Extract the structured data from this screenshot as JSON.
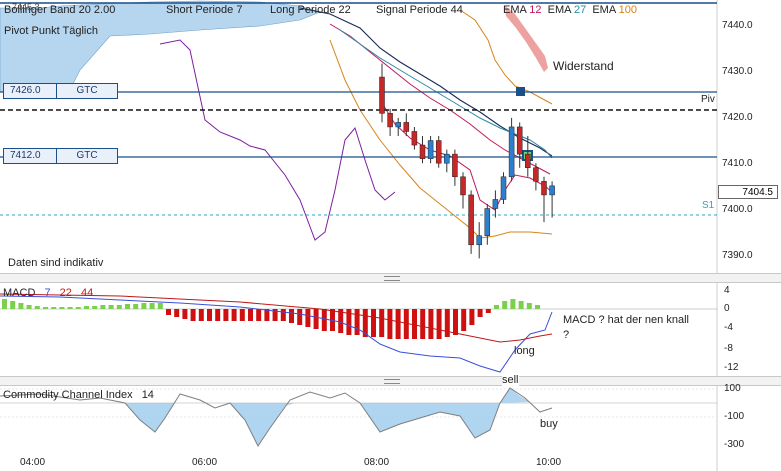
{
  "header": {
    "bollinger": "Bollinger Band",
    "bollinger_params": "20 2.00",
    "short": "Short Periode",
    "short_value": "7",
    "long": "Long Periode",
    "long_value": "22",
    "signal": "Signal Periode",
    "signal_value": "44",
    "ema": "EMA",
    "ema1": "12",
    "ema2": "27",
    "ema3": "100",
    "pivot": "Pivot Punkt Täglich",
    "obscured_price": "7445.3"
  },
  "orders": [
    {
      "price": "7426.0",
      "tif": "GTC"
    },
    {
      "price": "7412.0",
      "tif": "GTC"
    }
  ],
  "labels": {
    "widerstand": "Widerstand",
    "piv": "Piv",
    "s1": "S1",
    "disclaimer": "Daten sind indikativ",
    "current_price": "7404.5"
  },
  "price_axis": [
    "7440.0",
    "7430.0",
    "7420.0",
    "7410.0",
    "7400.0",
    "7390.0"
  ],
  "macd": {
    "title": "MACD",
    "p1": "7",
    "p2": "22",
    "p3": "44",
    "axis": [
      "4",
      "0",
      "-4",
      "-8",
      "-12"
    ],
    "note": "MACD ? hat der nen knall ?",
    "long": "long",
    "sell": "sell"
  },
  "cci": {
    "title": "Commodity Channel Index",
    "period": "14",
    "axis": [
      "100",
      "-100",
      "-300"
    ],
    "buy": "buy"
  },
  "time_axis": [
    "04:00",
    "06:00",
    "08:00",
    "10:00"
  ],
  "colors": {
    "up": "#2a7fd0",
    "down": "#c62828",
    "cloud": "#9ec8ea",
    "macd_line": "#3b4fd8",
    "signal_line": "#c01818",
    "hist_pos": "#7ad04a",
    "hist_neg": "#d01010",
    "cci": "#7f7f7f",
    "cci_fill": "#8fc3ea",
    "order_line": "#1a4f8a"
  },
  "chart_data": {
    "type": "candlestick",
    "price_range": [
      7386,
      7446
    ],
    "candles": [
      {
        "t": "08:00",
        "o": 7429,
        "h": 7432,
        "l": 7419,
        "c": 7421
      },
      {
        "t": "08:05",
        "o": 7421,
        "h": 7422,
        "l": 7416,
        "c": 7418
      },
      {
        "t": "08:10",
        "o": 7418,
        "h": 7420,
        "l": 7416,
        "c": 7419
      },
      {
        "t": "08:15",
        "o": 7419,
        "h": 7421,
        "l": 7416,
        "c": 7417
      },
      {
        "t": "08:20",
        "o": 7417,
        "h": 7418,
        "l": 7413,
        "c": 7414
      },
      {
        "t": "08:25",
        "o": 7414,
        "h": 7416,
        "l": 7410,
        "c": 7411
      },
      {
        "t": "08:30",
        "o": 7411,
        "h": 7416,
        "l": 7410,
        "c": 7415
      },
      {
        "t": "08:35",
        "o": 7415,
        "h": 7416,
        "l": 7409,
        "c": 7410
      },
      {
        "t": "08:40",
        "o": 7410,
        "h": 7413,
        "l": 7408,
        "c": 7412
      },
      {
        "t": "08:45",
        "o": 7412,
        "h": 7413,
        "l": 7405,
        "c": 7407
      },
      {
        "t": "08:50",
        "o": 7407,
        "h": 7408,
        "l": 7400,
        "c": 7403
      },
      {
        "t": "08:55",
        "o": 7403,
        "h": 7404,
        "l": 7390,
        "c": 7392
      },
      {
        "t": "09:00",
        "o": 7392,
        "h": 7397,
        "l": 7389,
        "c": 7394
      },
      {
        "t": "09:05",
        "o": 7394,
        "h": 7401,
        "l": 7392,
        "c": 7400
      },
      {
        "t": "09:10",
        "o": 7400,
        "h": 7404,
        "l": 7398,
        "c": 7402
      },
      {
        "t": "09:15",
        "o": 7402,
        "h": 7408,
        "l": 7401,
        "c": 7407
      },
      {
        "t": "09:20",
        "o": 7407,
        "h": 7420,
        "l": 7406,
        "c": 7418
      },
      {
        "t": "09:25",
        "o": 7418,
        "h": 7419,
        "l": 7409,
        "c": 7412
      },
      {
        "t": "09:30",
        "o": 7412,
        "h": 7416,
        "l": 7407,
        "c": 7409
      },
      {
        "t": "09:35",
        "o": 7409,
        "h": 7410,
        "l": 7404,
        "c": 7406
      },
      {
        "t": "09:40",
        "o": 7406,
        "h": 7407,
        "l": 7397,
        "c": 7403
      },
      {
        "t": "09:45",
        "o": 7403,
        "h": 7406,
        "l": 7398,
        "c": 7405
      }
    ]
  }
}
